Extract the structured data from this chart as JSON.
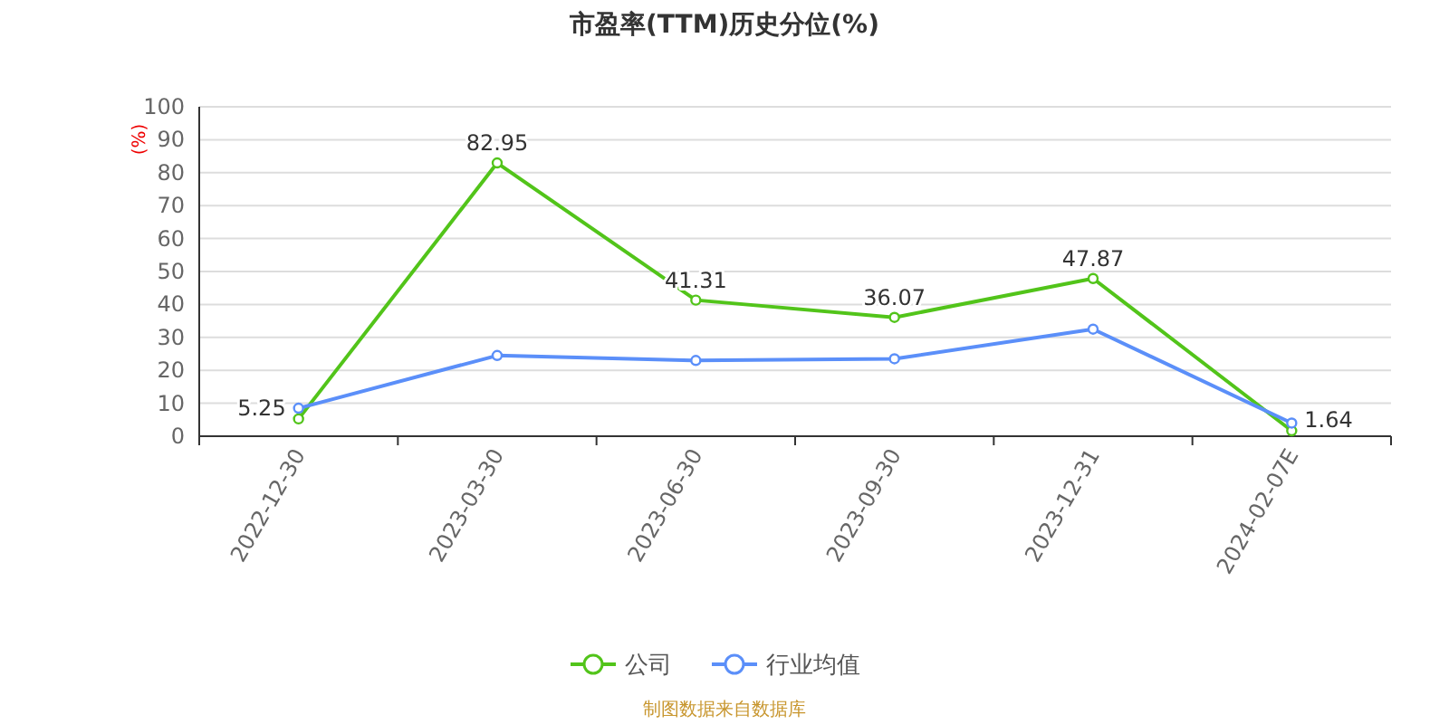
{
  "chart_data": {
    "type": "line",
    "title": "市盈率(TTM)历史分位(%)",
    "ylabel": "(%)",
    "categories": [
      "2022-12-30",
      "2023-03-30",
      "2023-06-30",
      "2023-09-30",
      "2023-12-31",
      "2024-02-07E"
    ],
    "series": [
      {
        "name": "公司",
        "color": "#52c41a",
        "values": [
          5.25,
          82.95,
          41.31,
          36.07,
          47.87,
          1.64
        ],
        "value_labels": [
          "5.25",
          "82.95",
          "41.31",
          "36.07",
          "47.87",
          "1.64"
        ]
      },
      {
        "name": "行业均值",
        "color": "#5b8ff9",
        "values": [
          8.5,
          24.5,
          23,
          23.5,
          32.5,
          4
        ]
      }
    ],
    "ylim": [
      0,
      100
    ],
    "yticks": [
      0,
      10,
      20,
      30,
      40,
      50,
      60,
      70,
      80,
      90,
      100
    ],
    "grid": "y",
    "legend": "bottom",
    "marker": "circle",
    "annotations": [
      "制图数据来自数据库"
    ]
  }
}
